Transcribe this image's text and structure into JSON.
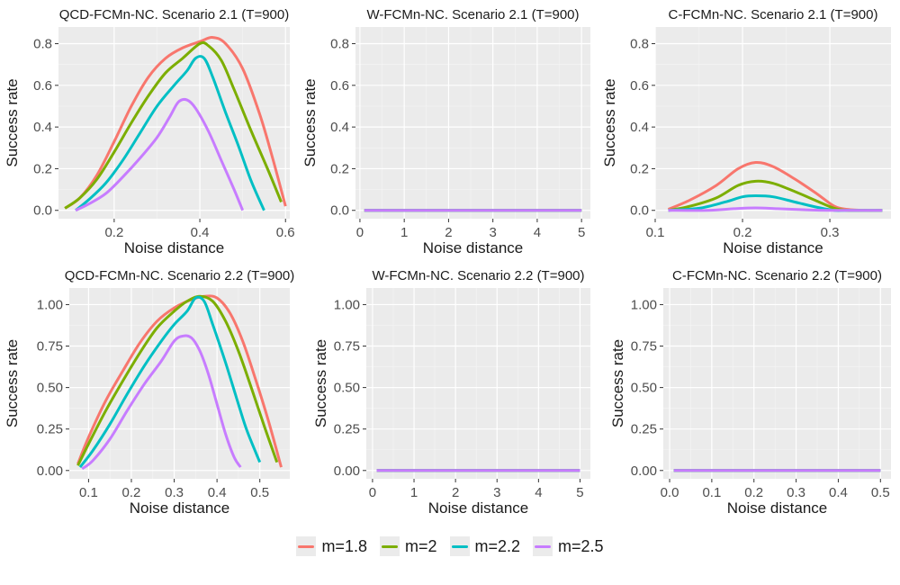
{
  "colors": {
    "panel_bg": "#ebebeb",
    "grid_major": "#ffffff",
    "grid_minor": "#f5f5f5",
    "axis_text": "#4d4d4d",
    "title_text": "#1a1a1a"
  },
  "legend": {
    "items": [
      {
        "label": "m=1.8",
        "color": "#F8766D"
      },
      {
        "label": "m=2",
        "color": "#7CAE00"
      },
      {
        "label": "m=2.2",
        "color": "#00BFC4"
      },
      {
        "label": "m=2.5",
        "color": "#C77CFF"
      }
    ]
  },
  "chart_data": [
    {
      "type": "line",
      "title": "QCD-FCMn-NC. Scenario 2.1 (T=900)",
      "xlabel": "Noise distance",
      "ylabel": "Success rate",
      "xlim": [
        0.07,
        0.61
      ],
      "ylim": [
        -0.04,
        0.88
      ],
      "xticks": [
        0.2,
        0.4,
        0.6
      ],
      "xtick_labels": [
        "0.2",
        "0.4",
        "0.6"
      ],
      "yticks": [
        0,
        0.2,
        0.4,
        0.6,
        0.8
      ],
      "ytick_labels": [
        "0.0",
        "0.2",
        "0.4",
        "0.6",
        "0.8"
      ],
      "series": [
        {
          "name": "m=1.8",
          "x": [
            0.085,
            0.12,
            0.16,
            0.2,
            0.24,
            0.28,
            0.32,
            0.36,
            0.4,
            0.43,
            0.46,
            0.5,
            0.54,
            0.57,
            0.6
          ],
          "y": [
            0.01,
            0.06,
            0.17,
            0.33,
            0.5,
            0.64,
            0.73,
            0.78,
            0.81,
            0.83,
            0.8,
            0.68,
            0.46,
            0.25,
            0.02
          ]
        },
        {
          "name": "m=2",
          "x": [
            0.085,
            0.12,
            0.16,
            0.2,
            0.24,
            0.28,
            0.32,
            0.36,
            0.4,
            0.42,
            0.45,
            0.48,
            0.52,
            0.56,
            0.59
          ],
          "y": [
            0.01,
            0.06,
            0.15,
            0.28,
            0.42,
            0.55,
            0.66,
            0.73,
            0.8,
            0.79,
            0.72,
            0.58,
            0.38,
            0.19,
            0.04
          ]
        },
        {
          "name": "m=2.2",
          "x": [
            0.11,
            0.14,
            0.18,
            0.22,
            0.26,
            0.3,
            0.34,
            0.37,
            0.39,
            0.41,
            0.43,
            0.46,
            0.49,
            0.52,
            0.55
          ],
          "y": [
            0.0,
            0.05,
            0.13,
            0.24,
            0.37,
            0.5,
            0.6,
            0.67,
            0.73,
            0.73,
            0.64,
            0.47,
            0.31,
            0.14,
            0.0
          ]
        },
        {
          "name": "m=2.5",
          "x": [
            0.11,
            0.14,
            0.18,
            0.22,
            0.26,
            0.3,
            0.33,
            0.35,
            0.37,
            0.39,
            0.42,
            0.45,
            0.48,
            0.5
          ],
          "y": [
            0.0,
            0.03,
            0.08,
            0.16,
            0.25,
            0.35,
            0.45,
            0.52,
            0.53,
            0.49,
            0.38,
            0.24,
            0.1,
            0.0
          ]
        }
      ]
    },
    {
      "type": "line",
      "title": "W-FCMn-NC. Scenario 2.1 (T=900)",
      "xlabel": "Noise distance",
      "ylabel": "Success rate",
      "xlim": [
        -0.1,
        5.2
      ],
      "ylim": [
        -0.04,
        0.88
      ],
      "xticks": [
        0,
        1,
        2,
        3,
        4,
        5
      ],
      "xtick_labels": [
        "0",
        "1",
        "2",
        "3",
        "4",
        "5"
      ],
      "yticks": [
        0,
        0.2,
        0.4,
        0.6,
        0.8
      ],
      "ytick_labels": [
        "0.0",
        "0.2",
        "0.4",
        "0.6",
        "0.8"
      ],
      "series": [
        {
          "name": "m=1.8",
          "x": [
            0.1,
            5.0
          ],
          "y": [
            0,
            0
          ]
        },
        {
          "name": "m=2",
          "x": [
            0.1,
            5.0
          ],
          "y": [
            0,
            0
          ]
        },
        {
          "name": "m=2.2",
          "x": [
            0.1,
            5.0
          ],
          "y": [
            0,
            0
          ]
        },
        {
          "name": "m=2.5",
          "x": [
            0.1,
            5.0
          ],
          "y": [
            0,
            0
          ]
        }
      ]
    },
    {
      "type": "line",
      "title": "C-FCMn-NC. Scenario 2.1 (T=900)",
      "xlabel": "Noise distance",
      "ylabel": "Success rate",
      "xlim": [
        0.1,
        0.37
      ],
      "ylim": [
        -0.04,
        0.88
      ],
      "xticks": [
        0.1,
        0.2,
        0.3
      ],
      "xtick_labels": [
        "0.1",
        "0.2",
        "0.3"
      ],
      "yticks": [
        0,
        0.2,
        0.4,
        0.6,
        0.8
      ],
      "ytick_labels": [
        "0.0",
        "0.2",
        "0.4",
        "0.6",
        "0.8"
      ],
      "series": [
        {
          "name": "m=1.8",
          "x": [
            0.115,
            0.14,
            0.17,
            0.195,
            0.215,
            0.235,
            0.26,
            0.285,
            0.305,
            0.32,
            0.34,
            0.36
          ],
          "y": [
            0.005,
            0.05,
            0.12,
            0.2,
            0.23,
            0.21,
            0.15,
            0.08,
            0.02,
            0.005,
            0.0,
            0.0
          ]
        },
        {
          "name": "m=2",
          "x": [
            0.115,
            0.14,
            0.17,
            0.195,
            0.215,
            0.235,
            0.26,
            0.285,
            0.305,
            0.32,
            0.34,
            0.36
          ],
          "y": [
            0.0,
            0.02,
            0.06,
            0.12,
            0.14,
            0.13,
            0.09,
            0.045,
            0.01,
            0.0,
            0.0,
            0.0
          ]
        },
        {
          "name": "m=2.2",
          "x": [
            0.115,
            0.15,
            0.18,
            0.2,
            0.215,
            0.235,
            0.26,
            0.285,
            0.305,
            0.32,
            0.36
          ],
          "y": [
            0.0,
            0.01,
            0.04,
            0.065,
            0.07,
            0.065,
            0.04,
            0.015,
            0.0,
            0.0,
            0.0
          ]
        },
        {
          "name": "m=2.5",
          "x": [
            0.115,
            0.16,
            0.19,
            0.215,
            0.24,
            0.27,
            0.3,
            0.36
          ],
          "y": [
            0.0,
            0.0,
            0.008,
            0.012,
            0.008,
            0.003,
            0.0,
            0.0
          ]
        }
      ]
    },
    {
      "type": "line",
      "title": "QCD-FCMn-NC. Scenario 2.2 (T=900)",
      "xlabel": "Noise distance",
      "ylabel": "Success rate",
      "xlim": [
        0.055,
        0.57
      ],
      "ylim": [
        -0.05,
        1.1
      ],
      "xticks": [
        0.1,
        0.2,
        0.3,
        0.4,
        0.5
      ],
      "xtick_labels": [
        "0.1",
        "0.2",
        "0.3",
        "0.4",
        "0.5"
      ],
      "yticks": [
        0,
        0.25,
        0.5,
        0.75,
        1.0
      ],
      "ytick_labels": [
        "0.00",
        "0.25",
        "0.50",
        "0.75",
        "1.00"
      ],
      "series": [
        {
          "name": "m=1.8",
          "x": [
            0.075,
            0.1,
            0.14,
            0.18,
            0.22,
            0.26,
            0.3,
            0.34,
            0.37,
            0.4,
            0.43,
            0.46,
            0.49,
            0.52,
            0.55
          ],
          "y": [
            0.04,
            0.2,
            0.42,
            0.6,
            0.77,
            0.9,
            0.98,
            1.03,
            1.05,
            1.04,
            0.95,
            0.78,
            0.55,
            0.3,
            0.02
          ]
        },
        {
          "name": "m=2",
          "x": [
            0.075,
            0.1,
            0.14,
            0.18,
            0.22,
            0.26,
            0.3,
            0.33,
            0.36,
            0.39,
            0.42,
            0.45,
            0.48,
            0.51,
            0.54
          ],
          "y": [
            0.03,
            0.16,
            0.36,
            0.54,
            0.71,
            0.86,
            0.96,
            1.02,
            1.05,
            1.02,
            0.9,
            0.72,
            0.5,
            0.27,
            0.05
          ]
        },
        {
          "name": "m=2.2",
          "x": [
            0.08,
            0.11,
            0.15,
            0.19,
            0.23,
            0.27,
            0.3,
            0.33,
            0.35,
            0.37,
            0.39,
            0.42,
            0.45,
            0.47,
            0.5
          ],
          "y": [
            0.02,
            0.12,
            0.28,
            0.46,
            0.63,
            0.78,
            0.88,
            0.96,
            1.04,
            1.02,
            0.88,
            0.65,
            0.4,
            0.24,
            0.05
          ]
        },
        {
          "name": "m=2.5",
          "x": [
            0.085,
            0.11,
            0.15,
            0.19,
            0.23,
            0.27,
            0.3,
            0.32,
            0.34,
            0.36,
            0.38,
            0.4,
            0.42,
            0.44,
            0.455
          ],
          "y": [
            0.01,
            0.06,
            0.19,
            0.36,
            0.52,
            0.66,
            0.78,
            0.81,
            0.8,
            0.72,
            0.58,
            0.4,
            0.22,
            0.08,
            0.02
          ]
        }
      ]
    },
    {
      "type": "line",
      "title": "W-FCMn-NC. Scenario 2.2 (T=900)",
      "xlabel": "Noise distance",
      "ylabel": "Success rate",
      "xlim": [
        -0.15,
        5.25
      ],
      "ylim": [
        -0.05,
        1.1
      ],
      "xticks": [
        0,
        1,
        2,
        3,
        4,
        5
      ],
      "xtick_labels": [
        "0",
        "1",
        "2",
        "3",
        "4",
        "5"
      ],
      "yticks": [
        0,
        0.25,
        0.5,
        0.75,
        1.0
      ],
      "ytick_labels": [
        "0.00",
        "0.25",
        "0.50",
        "0.75",
        "1.00"
      ],
      "series": [
        {
          "name": "m=1.8",
          "x": [
            0.1,
            5.0
          ],
          "y": [
            0,
            0
          ]
        },
        {
          "name": "m=2",
          "x": [
            0.1,
            5.0
          ],
          "y": [
            0,
            0
          ]
        },
        {
          "name": "m=2.2",
          "x": [
            0.1,
            5.0
          ],
          "y": [
            0,
            0
          ]
        },
        {
          "name": "m=2.5",
          "x": [
            0.1,
            5.0
          ],
          "y": [
            0,
            0
          ]
        }
      ]
    },
    {
      "type": "line",
      "title": "C-FCMn-NC. Scenario 2.2 (T=900)",
      "xlabel": "Noise distance",
      "ylabel": "Success rate",
      "xlim": [
        -0.015,
        0.525
      ],
      "ylim": [
        -0.05,
        1.1
      ],
      "xticks": [
        0.0,
        0.1,
        0.2,
        0.3,
        0.4,
        0.5
      ],
      "xtick_labels": [
        "0.0",
        "0.1",
        "0.2",
        "0.3",
        "0.4",
        "0.5"
      ],
      "yticks": [
        0,
        0.25,
        0.5,
        0.75,
        1.0
      ],
      "ytick_labels": [
        "0.00",
        "0.25",
        "0.50",
        "0.75",
        "1.00"
      ],
      "series": [
        {
          "name": "m=1.8",
          "x": [
            0.01,
            0.5
          ],
          "y": [
            0,
            0
          ]
        },
        {
          "name": "m=2",
          "x": [
            0.01,
            0.5
          ],
          "y": [
            0,
            0
          ]
        },
        {
          "name": "m=2.2",
          "x": [
            0.01,
            0.5
          ],
          "y": [
            0,
            0
          ]
        },
        {
          "name": "m=2.5",
          "x": [
            0.01,
            0.5
          ],
          "y": [
            0,
            0
          ]
        }
      ]
    }
  ]
}
